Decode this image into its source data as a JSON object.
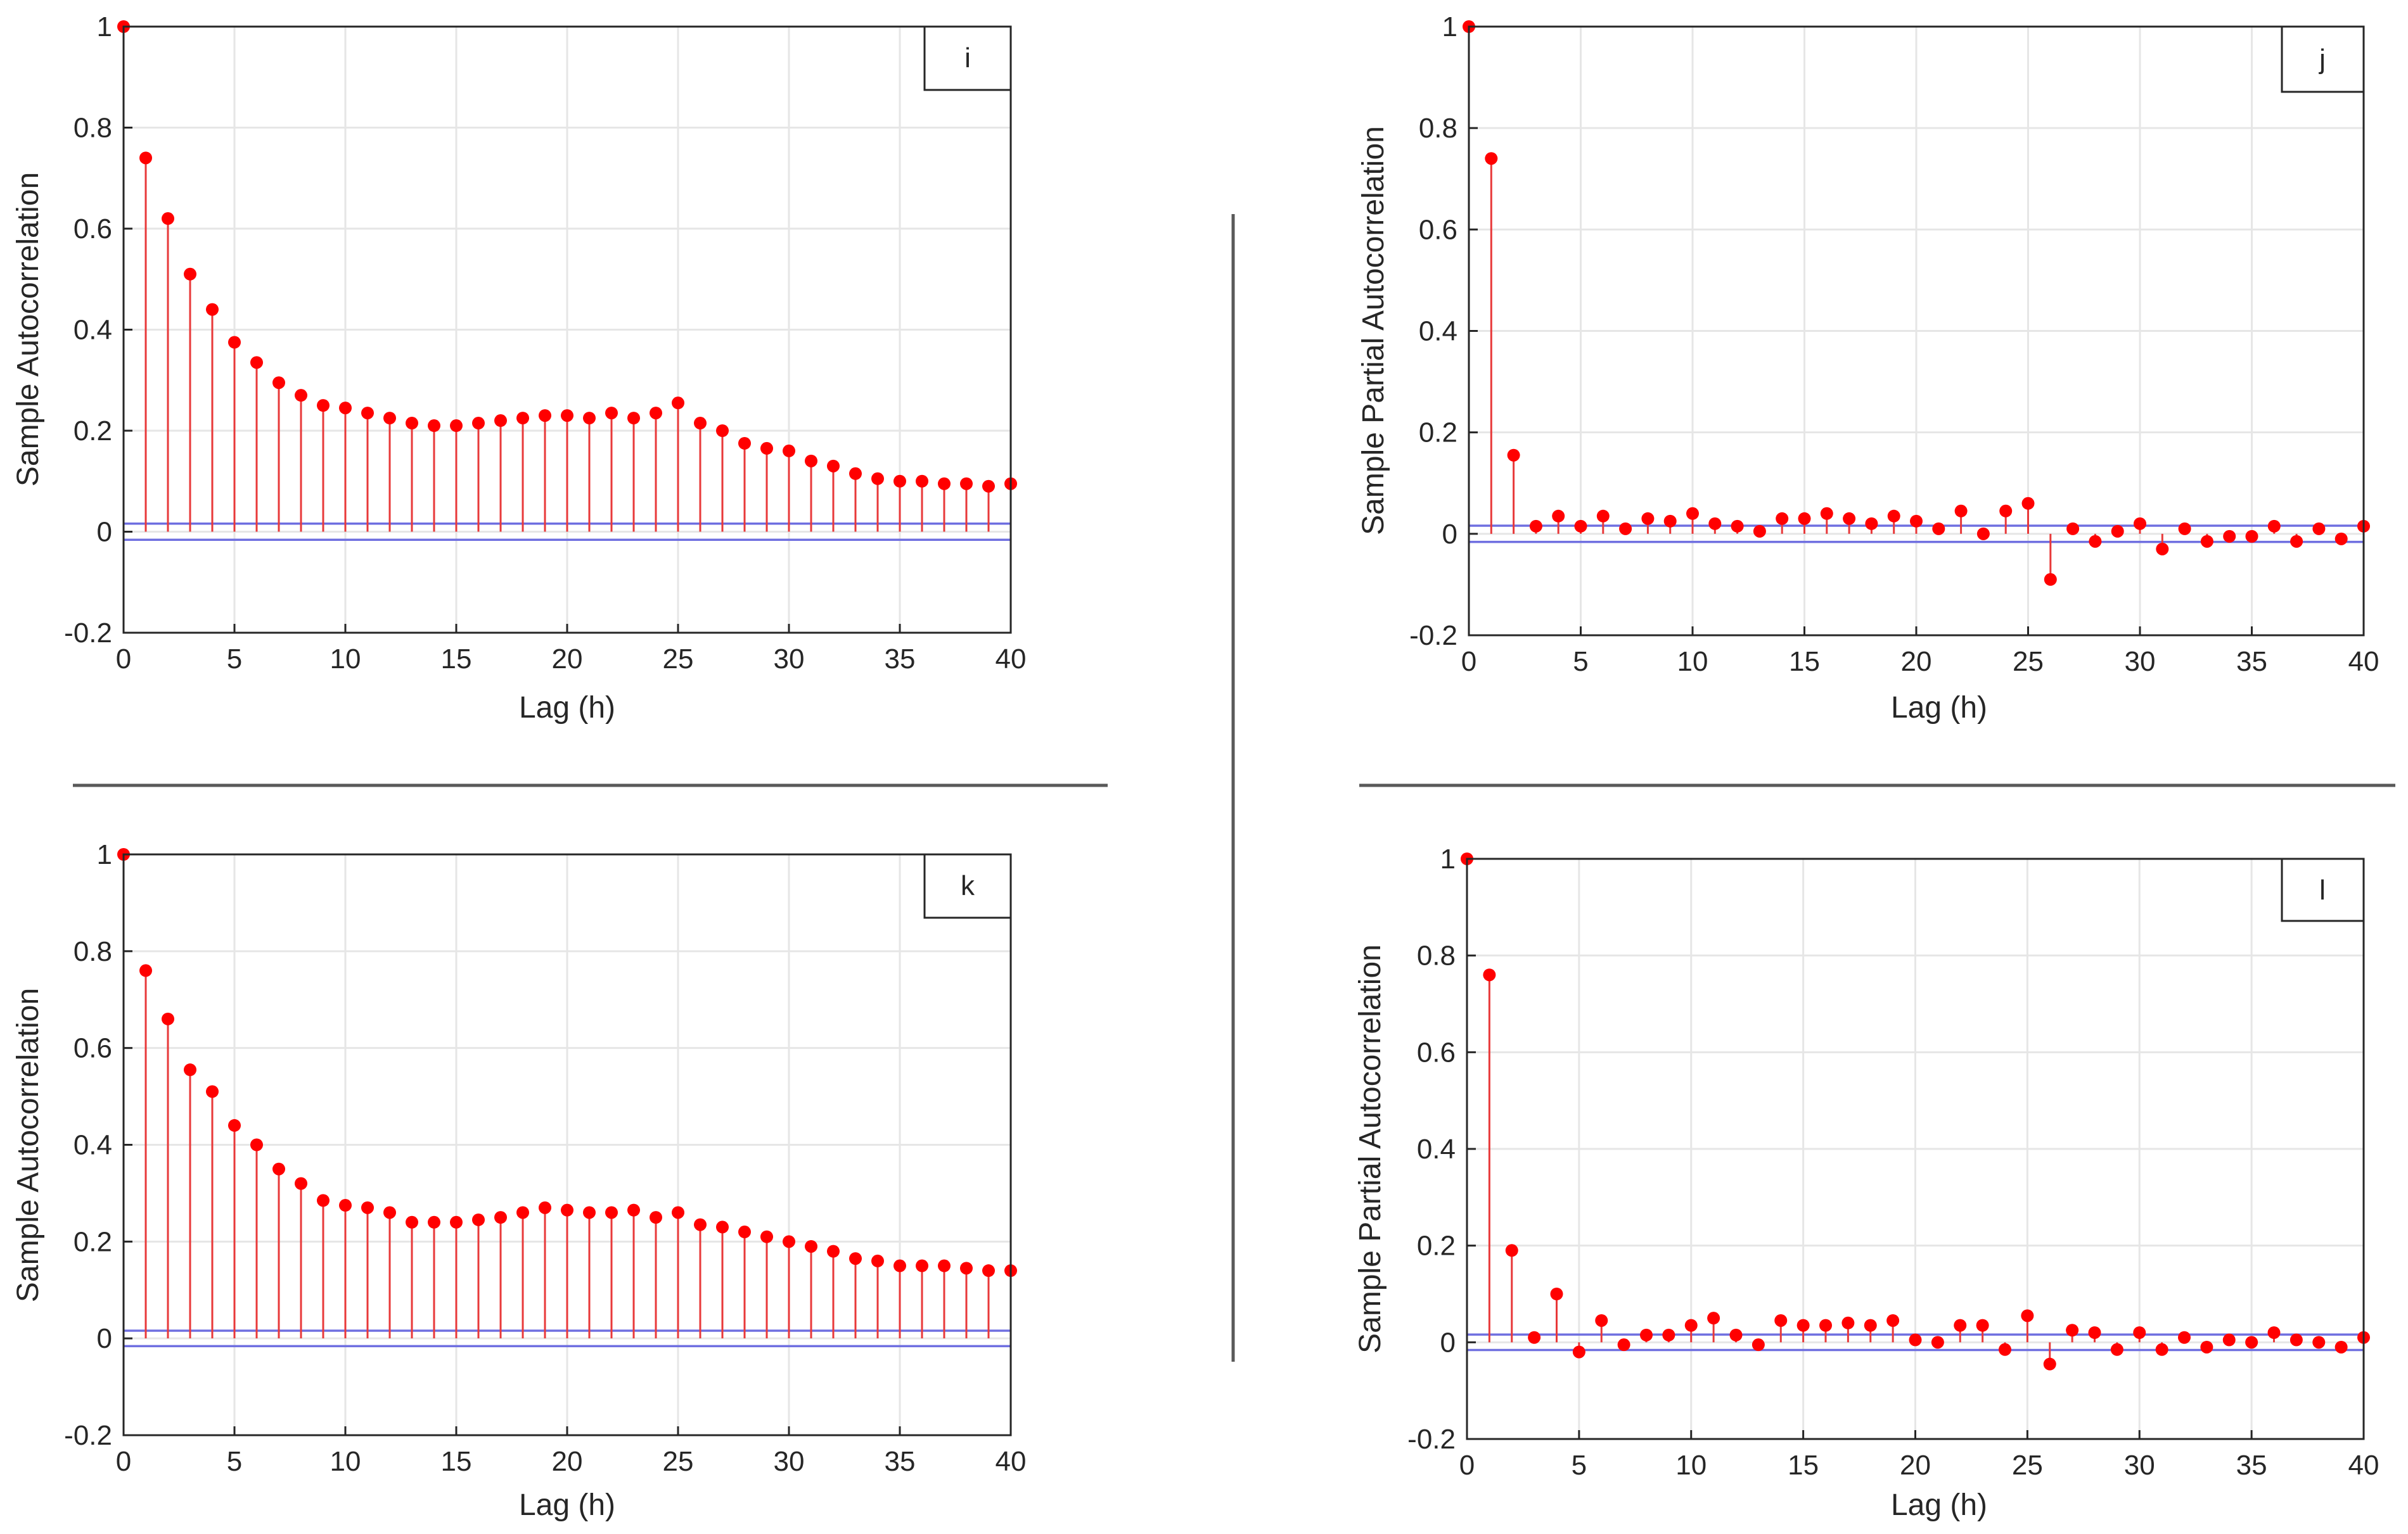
{
  "chart_data": [
    {
      "id": "i",
      "type": "stem",
      "panel_label": "i",
      "xlabel": "Lag (h)",
      "ylabel": "Sample Autocorrelation",
      "xlim": [
        0,
        40
      ],
      "ylim": [
        -0.2,
        1
      ],
      "xticks": [
        "0",
        "5",
        "10",
        "15",
        "20",
        "25",
        "30",
        "35",
        "40"
      ],
      "yticks": [
        "-0.2",
        "0",
        "0.2",
        "0.4",
        "0.6",
        "0.8",
        "1"
      ],
      "grid": true,
      "confidence_bounds": [
        0.016,
        -0.016
      ],
      "lags": [
        0,
        1,
        2,
        3,
        4,
        5,
        6,
        7,
        8,
        9,
        10,
        11,
        12,
        13,
        14,
        15,
        16,
        17,
        18,
        19,
        20,
        21,
        22,
        23,
        24,
        25,
        26,
        27,
        28,
        29,
        30,
        31,
        32,
        33,
        34,
        35,
        36,
        37,
        38,
        39,
        40
      ],
      "values": [
        1.0,
        0.74,
        0.62,
        0.51,
        0.44,
        0.375,
        0.335,
        0.295,
        0.27,
        0.25,
        0.245,
        0.235,
        0.225,
        0.215,
        0.21,
        0.21,
        0.215,
        0.22,
        0.225,
        0.23,
        0.23,
        0.225,
        0.235,
        0.225,
        0.235,
        0.255,
        0.215,
        0.2,
        0.175,
        0.165,
        0.16,
        0.14,
        0.13,
        0.115,
        0.105,
        0.1,
        0.1,
        0.095,
        0.095,
        0.09,
        0.095
      ],
      "colors": {
        "stem": "#e8393a",
        "marker": "#ff0000",
        "bounds": "#6f6fe0",
        "grid": "#e6e6e6",
        "axis": "#262626"
      }
    },
    {
      "id": "j",
      "type": "stem",
      "panel_label": "j",
      "xlabel": "Lag (h)",
      "ylabel": "Sample Partial Autocorrelation",
      "xlim": [
        0,
        40
      ],
      "ylim": [
        -0.2,
        1
      ],
      "xticks": [
        "0",
        "5",
        "10",
        "15",
        "20",
        "25",
        "30",
        "35",
        "40"
      ],
      "yticks": [
        "-0.2",
        "0",
        "0.2",
        "0.4",
        "0.6",
        "0.8",
        "1"
      ],
      "grid": true,
      "confidence_bounds": [
        0.016,
        -0.016
      ],
      "lags": [
        0,
        1,
        2,
        3,
        4,
        5,
        6,
        7,
        8,
        9,
        10,
        11,
        12,
        13,
        14,
        15,
        16,
        17,
        18,
        19,
        20,
        21,
        22,
        23,
        24,
        25,
        26,
        27,
        28,
        29,
        30,
        31,
        32,
        33,
        34,
        35,
        36,
        37,
        38,
        39,
        40
      ],
      "values": [
        1.0,
        0.74,
        0.155,
        0.015,
        0.035,
        0.015,
        0.035,
        0.01,
        0.03,
        0.025,
        0.04,
        0.02,
        0.015,
        0.005,
        0.03,
        0.03,
        0.04,
        0.03,
        0.02,
        0.035,
        0.025,
        0.01,
        0.045,
        0.0,
        0.045,
        0.06,
        -0.09,
        0.01,
        -0.015,
        0.005,
        0.02,
        -0.03,
        0.01,
        -0.015,
        -0.005,
        -0.005,
        0.015,
        -0.015,
        0.01,
        -0.01,
        0.015
      ],
      "colors": {
        "stem": "#e8393a",
        "marker": "#ff0000",
        "bounds": "#6f6fe0",
        "grid": "#e6e6e6",
        "axis": "#262626"
      }
    },
    {
      "id": "k",
      "type": "stem",
      "panel_label": "k",
      "xlabel": "Lag (h)",
      "ylabel": "Sample Autocorrelation",
      "xlim": [
        0,
        40
      ],
      "ylim": [
        -0.2,
        1
      ],
      "xticks": [
        "0",
        "5",
        "10",
        "15",
        "20",
        "25",
        "30",
        "35",
        "40"
      ],
      "yticks": [
        "-0.2",
        "0",
        "0.2",
        "0.4",
        "0.6",
        "0.8",
        "1"
      ],
      "grid": true,
      "confidence_bounds": [
        0.016,
        -0.016
      ],
      "lags": [
        0,
        1,
        2,
        3,
        4,
        5,
        6,
        7,
        8,
        9,
        10,
        11,
        12,
        13,
        14,
        15,
        16,
        17,
        18,
        19,
        20,
        21,
        22,
        23,
        24,
        25,
        26,
        27,
        28,
        29,
        30,
        31,
        32,
        33,
        34,
        35,
        36,
        37,
        38,
        39,
        40
      ],
      "values": [
        1.0,
        0.76,
        0.66,
        0.555,
        0.51,
        0.44,
        0.4,
        0.35,
        0.32,
        0.285,
        0.275,
        0.27,
        0.26,
        0.24,
        0.24,
        0.24,
        0.245,
        0.25,
        0.26,
        0.27,
        0.265,
        0.26,
        0.26,
        0.265,
        0.25,
        0.26,
        0.235,
        0.23,
        0.22,
        0.21,
        0.2,
        0.19,
        0.18,
        0.165,
        0.16,
        0.15,
        0.15,
        0.15,
        0.145,
        0.14,
        0.14
      ],
      "colors": {
        "stem": "#e8393a",
        "marker": "#ff0000",
        "bounds": "#6f6fe0",
        "grid": "#e6e6e6",
        "axis": "#262626"
      }
    },
    {
      "id": "l",
      "type": "stem",
      "panel_label": "l",
      "xlabel": "Lag (h)",
      "ylabel": "Sample Partial Autocorrelation",
      "xlim": [
        0,
        40
      ],
      "ylim": [
        -0.2,
        1
      ],
      "xticks": [
        "0",
        "5",
        "10",
        "15",
        "20",
        "25",
        "30",
        "35",
        "40"
      ],
      "yticks": [
        "-0.2",
        "0",
        "0.2",
        "0.4",
        "0.6",
        "0.8",
        "1"
      ],
      "grid": true,
      "confidence_bounds": [
        0.016,
        -0.016
      ],
      "lags": [
        0,
        1,
        2,
        3,
        4,
        5,
        6,
        7,
        8,
        9,
        10,
        11,
        12,
        13,
        14,
        15,
        16,
        17,
        18,
        19,
        20,
        21,
        22,
        23,
        24,
        25,
        26,
        27,
        28,
        29,
        30,
        31,
        32,
        33,
        34,
        35,
        36,
        37,
        38,
        39,
        40
      ],
      "values": [
        1.0,
        0.76,
        0.19,
        0.01,
        0.1,
        -0.02,
        0.045,
        -0.005,
        0.015,
        0.015,
        0.035,
        0.05,
        0.015,
        -0.005,
        0.045,
        0.035,
        0.035,
        0.04,
        0.035,
        0.045,
        0.005,
        0.0,
        0.035,
        0.035,
        -0.015,
        0.055,
        -0.045,
        0.025,
        0.02,
        -0.015,
        0.02,
        -0.015,
        0.01,
        -0.01,
        0.005,
        0.0,
        0.02,
        0.005,
        0.0,
        -0.01,
        0.01
      ],
      "colors": {
        "stem": "#e8393a",
        "marker": "#ff0000",
        "bounds": "#6f6fe0",
        "grid": "#e6e6e6",
        "axis": "#262626"
      }
    }
  ],
  "separators": {
    "color": "#595959"
  }
}
